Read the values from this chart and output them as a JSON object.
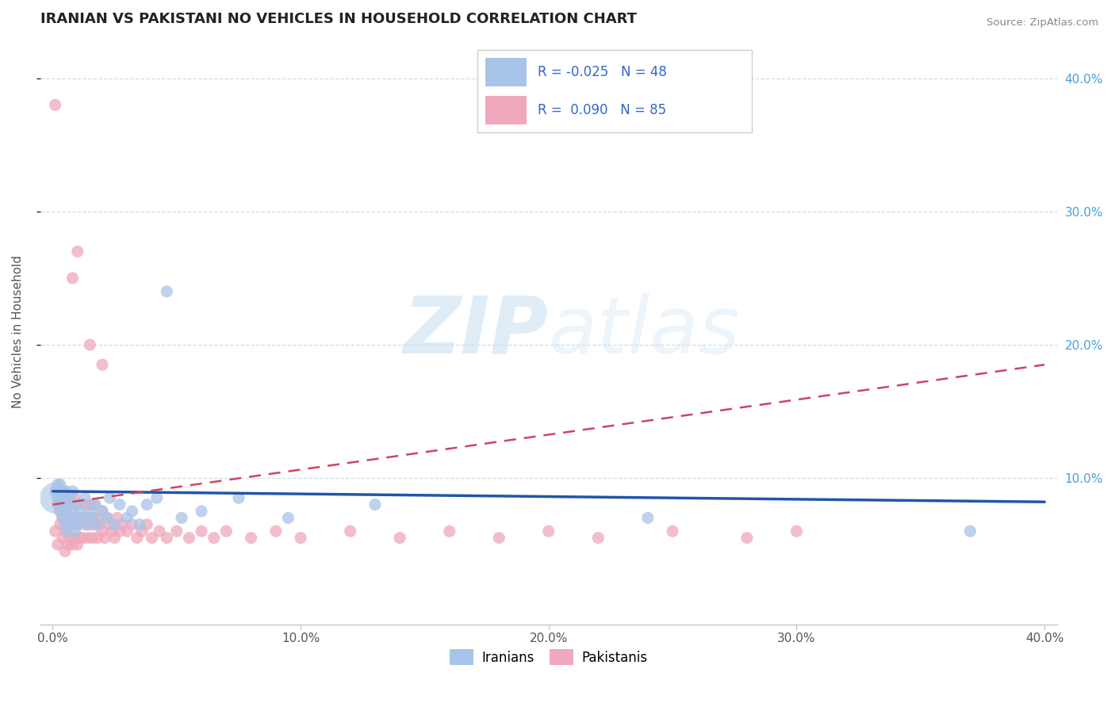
{
  "title": "IRANIAN VS PAKISTANI NO VEHICLES IN HOUSEHOLD CORRELATION CHART",
  "source": "Source: ZipAtlas.com",
  "ylabel": "No Vehicles in Household",
  "xlim": [
    -0.005,
    0.405
  ],
  "ylim": [
    -0.01,
    0.43
  ],
  "xticks": [
    0.0,
    0.1,
    0.2,
    0.3,
    0.4
  ],
  "xticklabels": [
    "0.0%",
    "10.0%",
    "20.0%",
    "30.0%",
    "40.0%"
  ],
  "yticks_right": [
    0.1,
    0.2,
    0.3,
    0.4
  ],
  "yticklabels_right": [
    "10.0%",
    "20.0%",
    "30.0%",
    "40.0%"
  ],
  "iranian_color": "#a8c4e8",
  "pakistani_color": "#f0a8bc",
  "iranian_line_color": "#2255aa",
  "pakistani_line_color": "#cc4466",
  "R_iranian": -0.025,
  "N_iranian": 48,
  "R_pakistani": 0.09,
  "N_pakistani": 85,
  "legend_labels": [
    "Iranians",
    "Pakistanis"
  ],
  "background_color": "#ffffff",
  "grid_color": "#c8d8e8",
  "watermark_zip": "ZIP",
  "watermark_atlas": "atlas",
  "title_fontsize": 13,
  "iranians_x": [
    0.001,
    0.002,
    0.002,
    0.003,
    0.003,
    0.003,
    0.004,
    0.004,
    0.005,
    0.005,
    0.005,
    0.006,
    0.006,
    0.007,
    0.007,
    0.008,
    0.008,
    0.008,
    0.009,
    0.009,
    0.01,
    0.01,
    0.011,
    0.012,
    0.013,
    0.014,
    0.015,
    0.016,
    0.017,
    0.018,
    0.02,
    0.022,
    0.023,
    0.025,
    0.027,
    0.03,
    0.032,
    0.035,
    0.038,
    0.042,
    0.046,
    0.052,
    0.06,
    0.075,
    0.095,
    0.13,
    0.24,
    0.37
  ],
  "iranians_y": [
    0.09,
    0.095,
    0.085,
    0.08,
    0.075,
    0.095,
    0.07,
    0.085,
    0.065,
    0.075,
    0.09,
    0.08,
    0.06,
    0.07,
    0.085,
    0.065,
    0.075,
    0.09,
    0.06,
    0.07,
    0.08,
    0.065,
    0.075,
    0.07,
    0.085,
    0.065,
    0.075,
    0.07,
    0.08,
    0.065,
    0.075,
    0.07,
    0.085,
    0.065,
    0.08,
    0.07,
    0.075,
    0.065,
    0.08,
    0.085,
    0.24,
    0.07,
    0.075,
    0.085,
    0.07,
    0.08,
    0.07,
    0.06
  ],
  "pakistanis_x": [
    0.001,
    0.001,
    0.002,
    0.002,
    0.003,
    0.003,
    0.003,
    0.004,
    0.004,
    0.004,
    0.005,
    0.005,
    0.005,
    0.005,
    0.006,
    0.006,
    0.006,
    0.007,
    0.007,
    0.007,
    0.008,
    0.008,
    0.008,
    0.009,
    0.009,
    0.009,
    0.01,
    0.01,
    0.01,
    0.011,
    0.011,
    0.012,
    0.012,
    0.013,
    0.013,
    0.014,
    0.014,
    0.015,
    0.015,
    0.016,
    0.016,
    0.017,
    0.017,
    0.018,
    0.018,
    0.019,
    0.02,
    0.02,
    0.021,
    0.022,
    0.023,
    0.024,
    0.025,
    0.026,
    0.027,
    0.028,
    0.03,
    0.032,
    0.034,
    0.036,
    0.038,
    0.04,
    0.043,
    0.046,
    0.05,
    0.055,
    0.06,
    0.065,
    0.07,
    0.08,
    0.09,
    0.1,
    0.12,
    0.14,
    0.16,
    0.18,
    0.2,
    0.22,
    0.25,
    0.28,
    0.3,
    0.01,
    0.008,
    0.015,
    0.02
  ],
  "pakistanis_y": [
    0.38,
    0.06,
    0.08,
    0.05,
    0.065,
    0.075,
    0.09,
    0.055,
    0.07,
    0.085,
    0.045,
    0.06,
    0.075,
    0.09,
    0.05,
    0.065,
    0.08,
    0.055,
    0.07,
    0.085,
    0.05,
    0.065,
    0.08,
    0.055,
    0.07,
    0.085,
    0.05,
    0.065,
    0.08,
    0.055,
    0.07,
    0.055,
    0.07,
    0.065,
    0.08,
    0.055,
    0.07,
    0.065,
    0.08,
    0.055,
    0.07,
    0.065,
    0.08,
    0.055,
    0.07,
    0.065,
    0.06,
    0.075,
    0.055,
    0.07,
    0.065,
    0.06,
    0.055,
    0.07,
    0.06,
    0.065,
    0.06,
    0.065,
    0.055,
    0.06,
    0.065,
    0.055,
    0.06,
    0.055,
    0.06,
    0.055,
    0.06,
    0.055,
    0.06,
    0.055,
    0.06,
    0.055,
    0.06,
    0.055,
    0.06,
    0.055,
    0.06,
    0.055,
    0.06,
    0.055,
    0.06,
    0.27,
    0.25,
    0.2,
    0.185
  ],
  "iranian_trend": [
    0.0,
    0.4,
    0.09,
    0.082
  ],
  "pakistani_trend": [
    0.0,
    0.4,
    0.08,
    0.185
  ]
}
